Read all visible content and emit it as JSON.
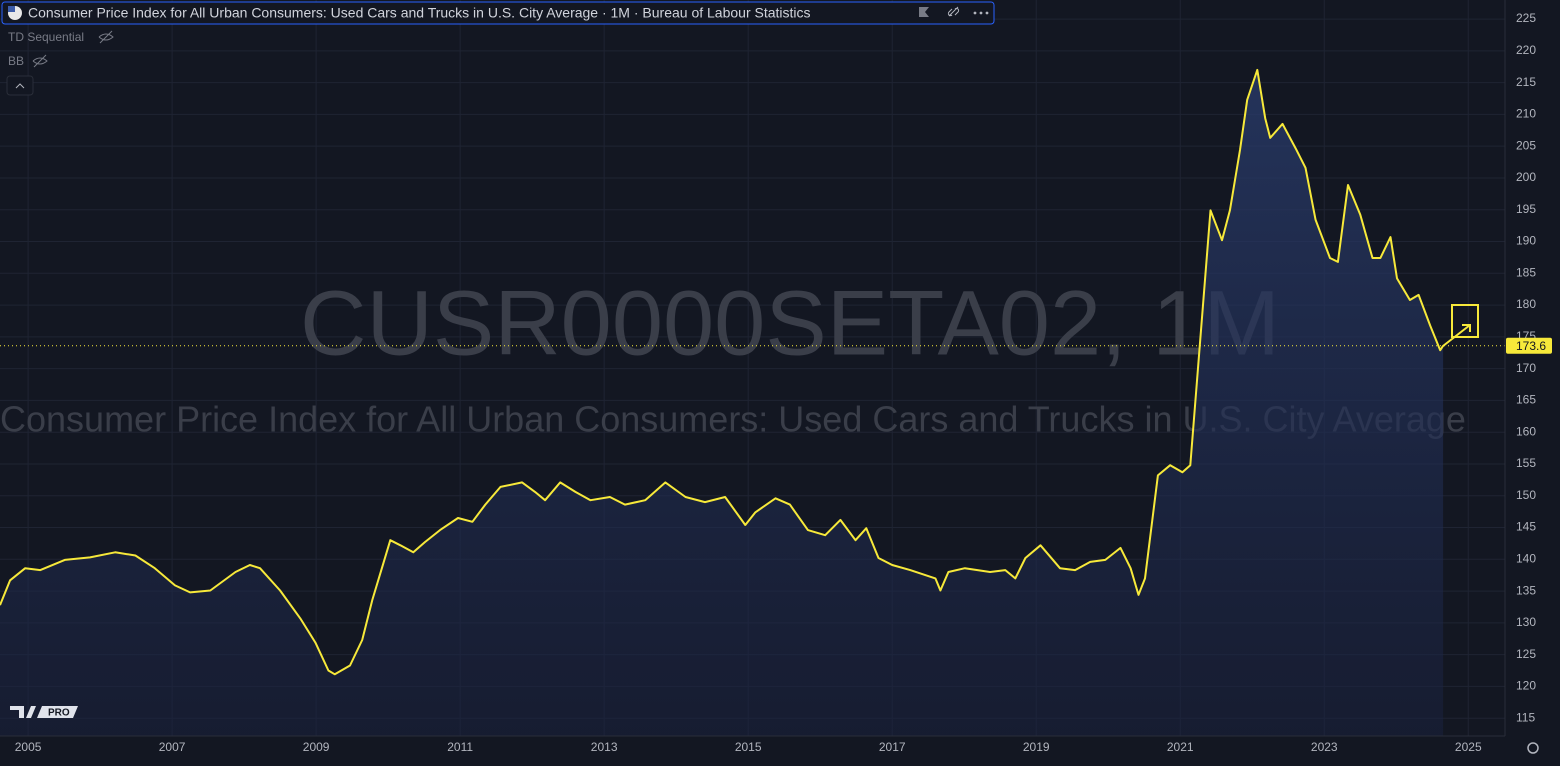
{
  "chart_data": {
    "type": "area",
    "title": "Consumer Price Index for All Urban Consumers: Used Cars and Trucks in U.S. City Average · 1M · Bureau of Labour Statistics",
    "indicators": [
      "TD Sequential",
      "BB"
    ],
    "watermark": "CUSR0000SETA02, 1M",
    "watermark_subtitle": "Consumer Price Index for All Urban Consumers: Used Cars and Trucks in U.S. City Average",
    "logo": "PRO",
    "x": [
      2004.61,
      2004.75,
      2004.96,
      2005.17,
      2005.51,
      2005.86,
      2006.21,
      2006.49,
      2006.76,
      2007.04,
      2007.25,
      2007.53,
      2007.88,
      2008.08,
      2008.22,
      2008.5,
      2008.78,
      2008.99,
      2009.17,
      2009.26,
      2009.47,
      2009.64,
      2009.78,
      2010.03,
      2010.17,
      2010.35,
      2010.51,
      2010.72,
      2010.97,
      2011.17,
      2011.35,
      2011.56,
      2011.86,
      2012.04,
      2012.18,
      2012.39,
      2012.6,
      2012.81,
      2013.08,
      2013.29,
      2013.57,
      2013.85,
      2014.13,
      2014.4,
      2014.68,
      2014.96,
      2015.1,
      2015.38,
      2015.58,
      2015.83,
      2016.07,
      2016.28,
      2016.49,
      2016.64,
      2016.81,
      2017.0,
      2017.25,
      2017.6,
      2017.67,
      2017.78,
      2018.01,
      2018.36,
      2018.57,
      2018.71,
      2018.85,
      2019.06,
      2019.33,
      2019.54,
      2019.75,
      2019.96,
      2020.17,
      2020.31,
      2020.42,
      2020.51,
      2020.69,
      2020.86,
      2021.03,
      2021.14,
      2021.42,
      2021.58,
      2021.69,
      2021.83,
      2021.93,
      2022.07,
      2022.18,
      2022.25,
      2022.42,
      2022.6,
      2022.74,
      2022.88,
      2023.08,
      2023.19,
      2023.33,
      2023.5,
      2023.67,
      2023.78,
      2023.92,
      2024.01,
      2024.19,
      2024.31,
      2024.47,
      2024.61,
      2024.65
    ],
    "series": [
      {
        "color": "#f7e93a",
        "values": [
          132.8,
          136.7,
          138.6,
          138.3,
          139.9,
          140.3,
          141.1,
          140.6,
          138.6,
          135.9,
          134.8,
          135.1,
          138.0,
          139.1,
          138.6,
          135.1,
          130.7,
          126.9,
          122.5,
          121.9,
          123.3,
          127.3,
          133.6,
          143.0,
          142.2,
          141.1,
          142.7,
          144.6,
          146.5,
          145.9,
          148.6,
          151.4,
          152.1,
          150.6,
          149.3,
          152.1,
          150.6,
          149.3,
          149.8,
          148.6,
          149.3,
          152.1,
          149.8,
          149.0,
          149.8,
          145.4,
          147.4,
          149.6,
          148.6,
          144.6,
          143.8,
          146.2,
          143.0,
          144.9,
          140.2,
          139.1,
          138.3,
          137.0,
          135.1,
          138.0,
          138.6,
          138.0,
          138.3,
          137.0,
          140.2,
          142.2,
          138.6,
          138.3,
          139.6,
          139.9,
          141.8,
          138.6,
          134.4,
          137.0,
          153.2,
          154.8,
          153.7,
          154.8,
          194.9,
          190.2,
          194.9,
          204.4,
          212.3,
          217.0,
          209.4,
          206.3,
          208.5,
          204.7,
          201.6,
          193.4,
          187.4,
          186.8,
          198.9,
          194.2,
          187.4,
          187.4,
          190.7,
          184.2,
          180.8,
          181.6,
          176.8,
          172.9,
          173.6
        ]
      }
    ],
    "xlim": [
      2004.61,
      2025.51
    ],
    "xticks": [
      2005,
      2007,
      2009,
      2011,
      2013,
      2015,
      2017,
      2019,
      2021,
      2023,
      2025
    ],
    "ylim": [
      112.2,
      228
    ],
    "yticks": [
      115,
      120,
      125,
      130,
      135,
      140,
      145,
      150,
      155,
      160,
      165,
      170,
      175,
      180,
      185,
      190,
      195,
      200,
      205,
      210,
      215,
      220,
      225
    ],
    "grid": true
  }
}
